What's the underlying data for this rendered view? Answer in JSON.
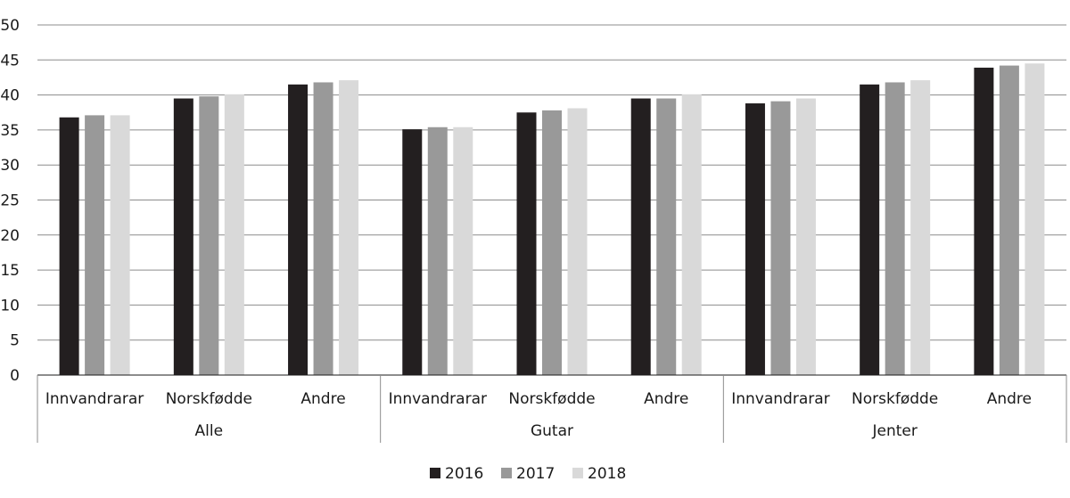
{
  "chart_data": {
    "type": "bar",
    "title": "",
    "xlabel": "",
    "ylabel": "",
    "ylim": [
      0,
      50
    ],
    "yticks": [
      0,
      5,
      10,
      15,
      20,
      25,
      30,
      35,
      40,
      45,
      50
    ],
    "grid": true,
    "legend_position": "bottom",
    "groups": [
      {
        "label": "Alle",
        "categories": [
          "Innvandrarar",
          "Norskfødde",
          "Andre"
        ]
      },
      {
        "label": "Gutar",
        "categories": [
          "Innvandrarar",
          "Norskfødde",
          "Andre"
        ]
      },
      {
        "label": "Jenter",
        "categories": [
          "Innvandrarar",
          "Norskfødde",
          "Andre"
        ]
      }
    ],
    "series": [
      {
        "name": "2016",
        "color": "#231f20",
        "values": [
          36.8,
          39.5,
          41.5,
          35.1,
          37.5,
          39.5,
          38.8,
          41.5,
          43.9
        ]
      },
      {
        "name": "2017",
        "color": "#999999",
        "values": [
          37.1,
          39.8,
          41.8,
          35.4,
          37.8,
          39.5,
          39.1,
          41.8,
          44.2
        ]
      },
      {
        "name": "2018",
        "color": "#d9d9d9",
        "values": [
          37.1,
          40.1,
          42.1,
          35.4,
          38.1,
          40.1,
          39.5,
          42.1,
          44.5
        ]
      }
    ]
  }
}
